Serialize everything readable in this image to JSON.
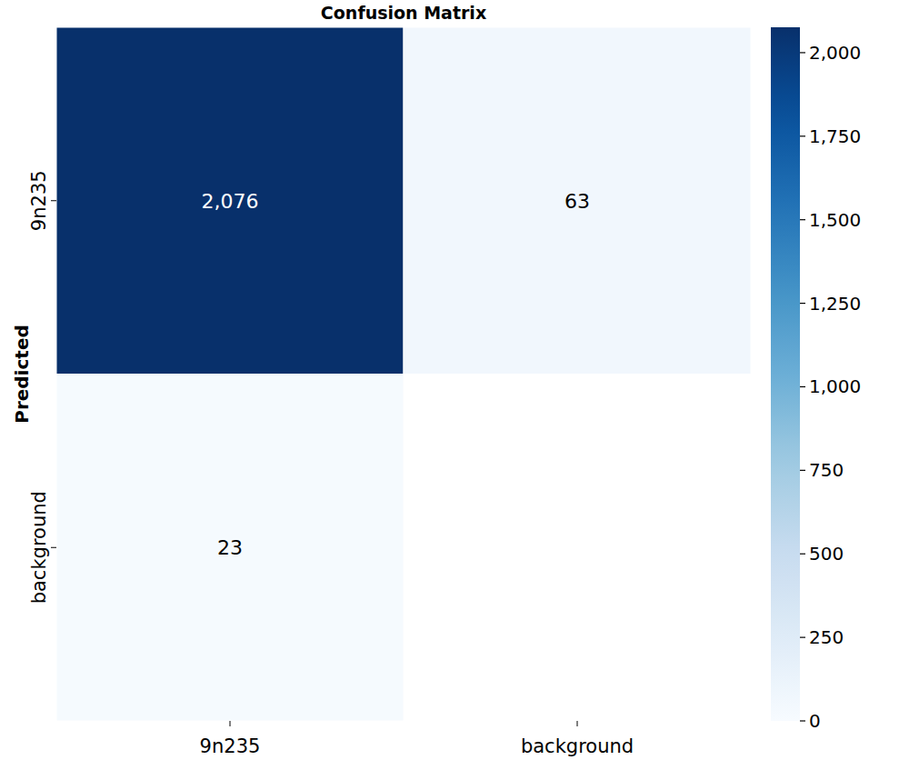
{
  "chart_data": {
    "type": "heatmap",
    "title": "Confusion Matrix",
    "y_label": "Predicted",
    "x_categories": [
      "9n235",
      "background"
    ],
    "y_categories": [
      "9n235",
      "background"
    ],
    "cells": [
      [
        2076,
        63
      ],
      [
        23,
        null
      ]
    ],
    "value_labels": [
      [
        "2,076",
        "63"
      ],
      [
        "23",
        null
      ]
    ],
    "color_range": [
      0,
      2076
    ],
    "color_ticks": [
      0,
      250,
      500,
      750,
      {
        "value": 1000,
        "label": "1,000"
      },
      {
        "value": 1250,
        "label": "1,250"
      },
      {
        "value": 1500,
        "label": "1,500"
      },
      {
        "value": 1750,
        "label": "1,750"
      },
      {
        "value": 2000,
        "label": "2,000"
      }
    ]
  }
}
